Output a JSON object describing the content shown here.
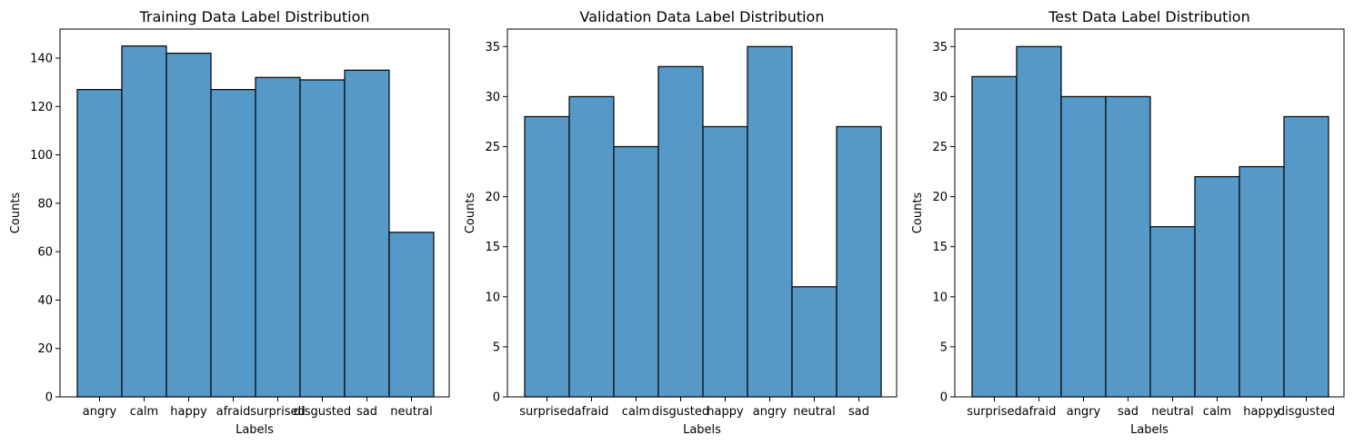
{
  "colors": {
    "bar_fill": "#5599c8",
    "bar_edge": "#000000",
    "axis": "#000000",
    "background": "#ffffff"
  },
  "chart_data": [
    {
      "type": "bar",
      "title": "Training Data Label Distribution",
      "xlabel": "Labels",
      "ylabel": "Counts",
      "categories": [
        "angry",
        "calm",
        "happy",
        "afraid",
        "surprised",
        "disgusted",
        "sad",
        "neutral"
      ],
      "values": [
        127,
        145,
        142,
        127,
        132,
        131,
        135,
        68
      ],
      "ylim": [
        0,
        152
      ],
      "yticks": [
        0,
        20,
        40,
        60,
        80,
        100,
        120,
        140
      ],
      "grid": false
    },
    {
      "type": "bar",
      "title": "Validation Data Label Distribution",
      "xlabel": "Labels",
      "ylabel": "Counts",
      "categories": [
        "surprised",
        "afraid",
        "calm",
        "disgusted",
        "happy",
        "angry",
        "neutral",
        "sad"
      ],
      "values": [
        28,
        30,
        25,
        33,
        27,
        35,
        11,
        27
      ],
      "ylim": [
        0,
        36.75
      ],
      "yticks": [
        0,
        5,
        10,
        15,
        20,
        25,
        30,
        35
      ],
      "grid": false
    },
    {
      "type": "bar",
      "title": "Test Data Label Distribution",
      "xlabel": "Labels",
      "ylabel": "Counts",
      "categories": [
        "surprised",
        "afraid",
        "angry",
        "sad",
        "neutral",
        "calm",
        "happy",
        "disgusted"
      ],
      "values": [
        32,
        35,
        30,
        30,
        17,
        22,
        23,
        28
      ],
      "ylim": [
        0,
        36.75
      ],
      "yticks": [
        0,
        5,
        10,
        15,
        20,
        25,
        30,
        35
      ],
      "grid": false
    }
  ]
}
